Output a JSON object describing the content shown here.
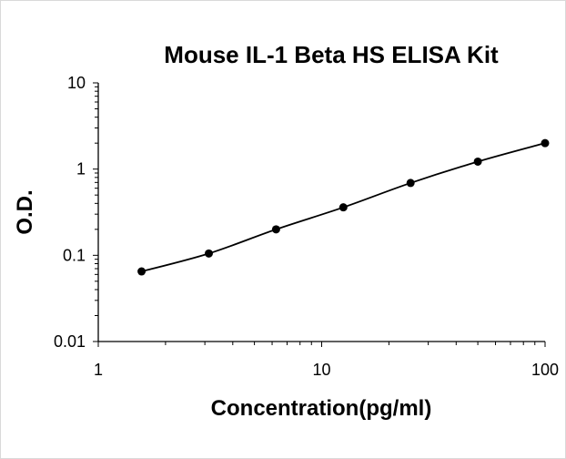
{
  "chart_data": {
    "type": "scatter",
    "title": "Mouse IL-1 Beta HS ELISA Kit",
    "xlabel": "Concentration(pg/ml)",
    "ylabel": "O.D.",
    "x_scale": "log",
    "y_scale": "log",
    "xlim": [
      1,
      100
    ],
    "ylim": [
      0.01,
      10
    ],
    "x_ticks": [
      "1",
      "10",
      "100"
    ],
    "y_ticks": [
      "0.01",
      "0.1",
      "1",
      "10"
    ],
    "grid": false,
    "legend": "none",
    "colors": {
      "marker": "#000000",
      "line": "#000000",
      "axis": "#000000"
    },
    "series": [
      {
        "x": [
          1.5625,
          3.125,
          6.25,
          12.5,
          25,
          50,
          100
        ],
        "y": [
          0.065,
          0.105,
          0.2,
          0.36,
          0.69,
          1.22,
          2.0
        ],
        "fit": "smooth-curve"
      }
    ]
  }
}
